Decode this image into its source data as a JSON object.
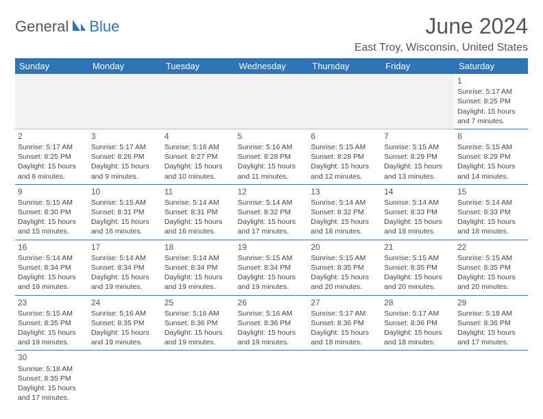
{
  "logo": {
    "part1": "General",
    "part2": "Blue"
  },
  "title": "June 2024",
  "location": "East Troy, Wisconsin, United States",
  "colors": {
    "header_bg": "#2f74b5",
    "header_text": "#ffffff",
    "border": "#2f74b5",
    "text": "#444444",
    "title": "#555555"
  },
  "weekdays": [
    "Sunday",
    "Monday",
    "Tuesday",
    "Wednesday",
    "Thursday",
    "Friday",
    "Saturday"
  ],
  "weeks": [
    [
      null,
      null,
      null,
      null,
      null,
      null,
      {
        "n": "1",
        "sr": "Sunrise: 5:17 AM",
        "ss": "Sunset: 8:25 PM",
        "dl": "Daylight: 15 hours and 7 minutes."
      }
    ],
    [
      {
        "n": "2",
        "sr": "Sunrise: 5:17 AM",
        "ss": "Sunset: 8:25 PM",
        "dl": "Daylight: 15 hours and 8 minutes."
      },
      {
        "n": "3",
        "sr": "Sunrise: 5:17 AM",
        "ss": "Sunset: 8:26 PM",
        "dl": "Daylight: 15 hours and 9 minutes."
      },
      {
        "n": "4",
        "sr": "Sunrise: 5:16 AM",
        "ss": "Sunset: 8:27 PM",
        "dl": "Daylight: 15 hours and 10 minutes."
      },
      {
        "n": "5",
        "sr": "Sunrise: 5:16 AM",
        "ss": "Sunset: 8:28 PM",
        "dl": "Daylight: 15 hours and 11 minutes."
      },
      {
        "n": "6",
        "sr": "Sunrise: 5:15 AM",
        "ss": "Sunset: 8:28 PM",
        "dl": "Daylight: 15 hours and 12 minutes."
      },
      {
        "n": "7",
        "sr": "Sunrise: 5:15 AM",
        "ss": "Sunset: 8:29 PM",
        "dl": "Daylight: 15 hours and 13 minutes."
      },
      {
        "n": "8",
        "sr": "Sunrise: 5:15 AM",
        "ss": "Sunset: 8:29 PM",
        "dl": "Daylight: 15 hours and 14 minutes."
      }
    ],
    [
      {
        "n": "9",
        "sr": "Sunrise: 5:15 AM",
        "ss": "Sunset: 8:30 PM",
        "dl": "Daylight: 15 hours and 15 minutes."
      },
      {
        "n": "10",
        "sr": "Sunrise: 5:15 AM",
        "ss": "Sunset: 8:31 PM",
        "dl": "Daylight: 15 hours and 16 minutes."
      },
      {
        "n": "11",
        "sr": "Sunrise: 5:14 AM",
        "ss": "Sunset: 8:31 PM",
        "dl": "Daylight: 15 hours and 16 minutes."
      },
      {
        "n": "12",
        "sr": "Sunrise: 5:14 AM",
        "ss": "Sunset: 8:32 PM",
        "dl": "Daylight: 15 hours and 17 minutes."
      },
      {
        "n": "13",
        "sr": "Sunrise: 5:14 AM",
        "ss": "Sunset: 8:32 PM",
        "dl": "Daylight: 15 hours and 18 minutes."
      },
      {
        "n": "14",
        "sr": "Sunrise: 5:14 AM",
        "ss": "Sunset: 8:33 PM",
        "dl": "Daylight: 15 hours and 18 minutes."
      },
      {
        "n": "15",
        "sr": "Sunrise: 5:14 AM",
        "ss": "Sunset: 8:33 PM",
        "dl": "Daylight: 15 hours and 18 minutes."
      }
    ],
    [
      {
        "n": "16",
        "sr": "Sunrise: 5:14 AM",
        "ss": "Sunset: 8:34 PM",
        "dl": "Daylight: 15 hours and 19 minutes."
      },
      {
        "n": "17",
        "sr": "Sunrise: 5:14 AM",
        "ss": "Sunset: 8:34 PM",
        "dl": "Daylight: 15 hours and 19 minutes."
      },
      {
        "n": "18",
        "sr": "Sunrise: 5:14 AM",
        "ss": "Sunset: 8:34 PM",
        "dl": "Daylight: 15 hours and 19 minutes."
      },
      {
        "n": "19",
        "sr": "Sunrise: 5:15 AM",
        "ss": "Sunset: 8:34 PM",
        "dl": "Daylight: 15 hours and 19 minutes."
      },
      {
        "n": "20",
        "sr": "Sunrise: 5:15 AM",
        "ss": "Sunset: 8:35 PM",
        "dl": "Daylight: 15 hours and 20 minutes."
      },
      {
        "n": "21",
        "sr": "Sunrise: 5:15 AM",
        "ss": "Sunset: 8:35 PM",
        "dl": "Daylight: 15 hours and 20 minutes."
      },
      {
        "n": "22",
        "sr": "Sunrise: 5:15 AM",
        "ss": "Sunset: 8:35 PM",
        "dl": "Daylight: 15 hours and 20 minutes."
      }
    ],
    [
      {
        "n": "23",
        "sr": "Sunrise: 5:15 AM",
        "ss": "Sunset: 8:35 PM",
        "dl": "Daylight: 15 hours and 19 minutes."
      },
      {
        "n": "24",
        "sr": "Sunrise: 5:16 AM",
        "ss": "Sunset: 8:35 PM",
        "dl": "Daylight: 15 hours and 19 minutes."
      },
      {
        "n": "25",
        "sr": "Sunrise: 5:16 AM",
        "ss": "Sunset: 8:36 PM",
        "dl": "Daylight: 15 hours and 19 minutes."
      },
      {
        "n": "26",
        "sr": "Sunrise: 5:16 AM",
        "ss": "Sunset: 8:36 PM",
        "dl": "Daylight: 15 hours and 19 minutes."
      },
      {
        "n": "27",
        "sr": "Sunrise: 5:17 AM",
        "ss": "Sunset: 8:36 PM",
        "dl": "Daylight: 15 hours and 18 minutes."
      },
      {
        "n": "28",
        "sr": "Sunrise: 5:17 AM",
        "ss": "Sunset: 8:36 PM",
        "dl": "Daylight: 15 hours and 18 minutes."
      },
      {
        "n": "29",
        "sr": "Sunrise: 5:18 AM",
        "ss": "Sunset: 8:36 PM",
        "dl": "Daylight: 15 hours and 17 minutes."
      }
    ],
    [
      {
        "n": "30",
        "sr": "Sunrise: 5:18 AM",
        "ss": "Sunset: 8:35 PM",
        "dl": "Daylight: 15 hours and 17 minutes."
      },
      null,
      null,
      null,
      null,
      null,
      null
    ]
  ]
}
